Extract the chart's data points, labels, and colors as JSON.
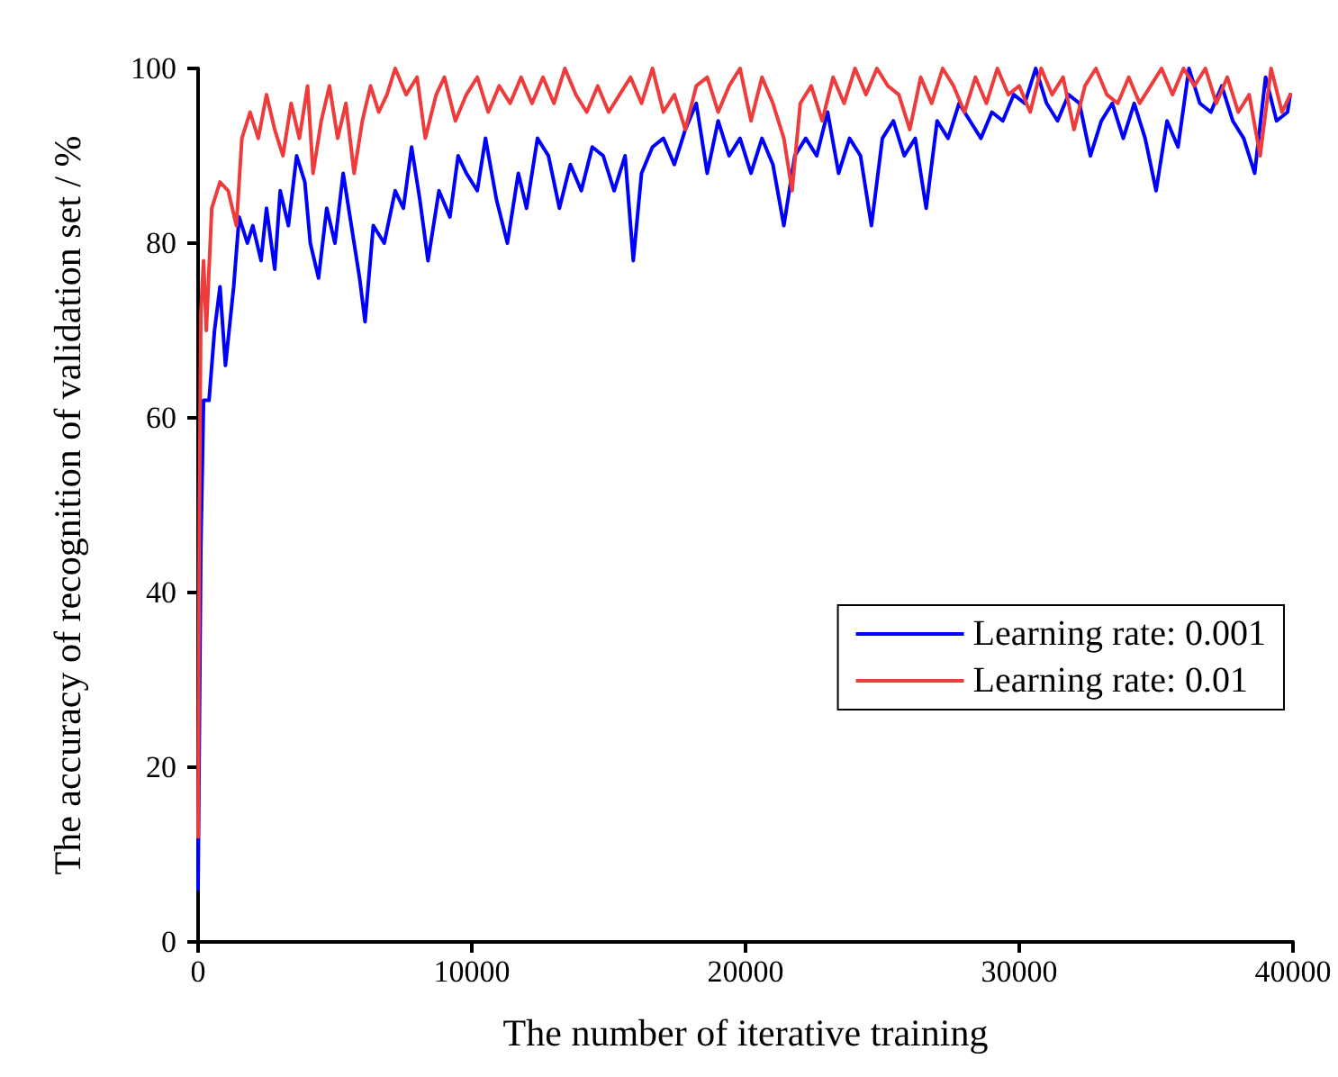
{
  "chart_data": {
    "type": "line",
    "xlabel": "The number of iterative training",
    "ylabel": "The accuracy of recognition of validation set / %",
    "xlim": [
      0,
      40000
    ],
    "xticks": [
      0,
      10000,
      20000,
      30000,
      40000
    ],
    "ylim": [
      0,
      100
    ],
    "yticks": [
      0,
      20,
      40,
      60,
      80,
      100
    ],
    "grid": false,
    "legend": "right",
    "marker": "none",
    "line_style": "solid",
    "series": [
      {
        "name": "Learning rate: 0.001",
        "color": "#0000ff",
        "x": [
          0,
          100,
          200,
          400,
          600,
          800,
          1000,
          1300,
          1500,
          1800,
          2000,
          2300,
          2500,
          2800,
          3000,
          3300,
          3600,
          3900,
          4100,
          4400,
          4700,
          5000,
          5300,
          5600,
          5900,
          6100,
          6400,
          6800,
          7200,
          7500,
          7800,
          8100,
          8400,
          8800,
          9200,
          9500,
          9800,
          10200,
          10500,
          10900,
          11300,
          11700,
          12000,
          12400,
          12800,
          13200,
          13600,
          14000,
          14400,
          14800,
          15200,
          15600,
          15900,
          16200,
          16600,
          17000,
          17400,
          17800,
          18200,
          18600,
          19000,
          19400,
          19800,
          20200,
          20600,
          21000,
          21400,
          21800,
          22200,
          22600,
          23000,
          23400,
          23800,
          24200,
          24600,
          25000,
          25400,
          25800,
          26200,
          26600,
          27000,
          27400,
          27800,
          28200,
          28600,
          29000,
          29400,
          29800,
          30200,
          30600,
          31000,
          31400,
          31800,
          32200,
          32600,
          33000,
          33400,
          33800,
          34200,
          34600,
          35000,
          35400,
          35800,
          36200,
          36600,
          37000,
          37400,
          37800,
          38200,
          38600,
          39000,
          39400,
          39800,
          39900
        ],
        "values": [
          6,
          45,
          62,
          62,
          70,
          75,
          66,
          75,
          83,
          80,
          82,
          78,
          84,
          77,
          86,
          82,
          90,
          87,
          80,
          76,
          84,
          80,
          88,
          82,
          76,
          71,
          82,
          80,
          86,
          84,
          91,
          85,
          78,
          86,
          83,
          90,
          88,
          86,
          92,
          85,
          80,
          88,
          84,
          92,
          90,
          84,
          89,
          86,
          91,
          90,
          86,
          90,
          78,
          88,
          91,
          92,
          89,
          93,
          96,
          88,
          94,
          90,
          92,
          88,
          92,
          89,
          82,
          90,
          92,
          90,
          95,
          88,
          92,
          90,
          82,
          92,
          94,
          90,
          92,
          84,
          94,
          92,
          96,
          94,
          92,
          95,
          94,
          97,
          96,
          100,
          96,
          94,
          97,
          96,
          90,
          94,
          96,
          92,
          96,
          92,
          86,
          94,
          91,
          100,
          96,
          95,
          98,
          94,
          92,
          88,
          99,
          94,
          95,
          97
        ]
      },
      {
        "name": "Learning rate: 0.01",
        "color": "#ee3b3b",
        "x": [
          0,
          50,
          100,
          200,
          300,
          500,
          800,
          1100,
          1400,
          1600,
          1900,
          2200,
          2500,
          2800,
          3100,
          3400,
          3700,
          4000,
          4200,
          4500,
          4800,
          5100,
          5400,
          5700,
          6000,
          6300,
          6600,
          6900,
          7200,
          7600,
          8000,
          8300,
          8700,
          9000,
          9400,
          9800,
          10200,
          10600,
          11000,
          11400,
          11800,
          12200,
          12600,
          13000,
          13400,
          13800,
          14200,
          14600,
          15000,
          15400,
          15800,
          16200,
          16600,
          17000,
          17400,
          17800,
          18200,
          18600,
          19000,
          19400,
          19800,
          20200,
          20600,
          21000,
          21400,
          21700,
          22000,
          22400,
          22800,
          23200,
          23600,
          24000,
          24400,
          24800,
          25200,
          25600,
          26000,
          26400,
          26800,
          27200,
          27600,
          28000,
          28400,
          28800,
          29200,
          29600,
          30000,
          30400,
          30800,
          31200,
          31600,
          32000,
          32400,
          32800,
          33200,
          33600,
          34000,
          34400,
          34800,
          35200,
          35600,
          36000,
          36400,
          36800,
          37200,
          37600,
          38000,
          38400,
          38800,
          39200,
          39600,
          39900
        ],
        "values": [
          12,
          50,
          72,
          78,
          70,
          84,
          87,
          86,
          82,
          92,
          95,
          92,
          97,
          93,
          90,
          96,
          92,
          98,
          88,
          94,
          98,
          92,
          96,
          88,
          94,
          98,
          95,
          97,
          100,
          97,
          99,
          92,
          97,
          99,
          94,
          97,
          99,
          95,
          98,
          96,
          99,
          96,
          99,
          96,
          100,
          97,
          95,
          98,
          95,
          97,
          99,
          96,
          100,
          95,
          97,
          93,
          98,
          99,
          95,
          98,
          100,
          94,
          99,
          96,
          92,
          86,
          96,
          98,
          94,
          99,
          96,
          100,
          97,
          100,
          98,
          97,
          93,
          99,
          96,
          100,
          98,
          95,
          99,
          96,
          100,
          97,
          98,
          95,
          100,
          97,
          99,
          93,
          98,
          100,
          97,
          96,
          99,
          96,
          98,
          100,
          97,
          100,
          98,
          100,
          96,
          99,
          95,
          97,
          90,
          100,
          95,
          97
        ]
      }
    ]
  }
}
